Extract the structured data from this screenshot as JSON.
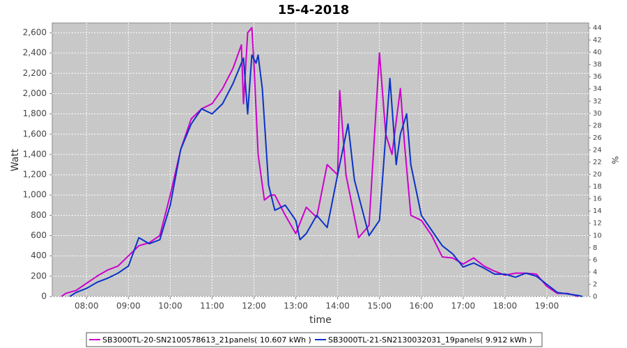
{
  "chart_data": {
    "type": "line",
    "title": "15-4-2018",
    "x_label": "time",
    "y_label": "Watt",
    "y2_label": "%",
    "xlim": [
      7.18,
      20.0
    ],
    "xticks": [
      {
        "value": 8,
        "label": "08:00"
      },
      {
        "value": 9,
        "label": "09:00"
      },
      {
        "value": 10,
        "label": "10:00"
      },
      {
        "value": 11,
        "label": "11:00"
      },
      {
        "value": 12,
        "label": "12:00"
      },
      {
        "value": 13,
        "label": "13:00"
      },
      {
        "value": 14,
        "label": "14:00"
      },
      {
        "value": 15,
        "label": "15:00"
      },
      {
        "value": 16,
        "label": "16:00"
      },
      {
        "value": 17,
        "label": "17:00"
      },
      {
        "value": 18,
        "label": "18:00"
      },
      {
        "value": 19,
        "label": "19:00"
      }
    ],
    "ylim": [
      0,
      2696
    ],
    "yticks": [
      0,
      200,
      400,
      600,
      800,
      {
        "value": 1000,
        "label": "1,000"
      },
      {
        "value": 1200,
        "label": "1,200"
      },
      {
        "value": 1400,
        "label": "1,400"
      },
      {
        "value": 1600,
        "label": "1,600"
      },
      {
        "value": 1800,
        "label": "1,800"
      },
      {
        "value": 2000,
        "label": "2,000"
      },
      {
        "value": 2200,
        "label": "2,200"
      },
      {
        "value": 2400,
        "label": "2,400"
      },
      {
        "value": 2600,
        "label": "2,600"
      }
    ],
    "y2lim": [
      0,
      44.8
    ],
    "y2ticks": [
      0,
      2,
      4,
      6,
      8,
      10,
      12,
      14,
      16,
      18,
      20,
      22,
      24,
      26,
      28,
      30,
      32,
      34,
      36,
      38,
      40,
      42,
      44
    ],
    "grid": true,
    "legend": "bottom",
    "series": [
      {
        "name": "SB3000TL-20-SN2100578613_21panels( 10.607 kWh )",
        "color": "#cc00cc",
        "x": [
          7.4,
          7.5,
          7.75,
          8.0,
          8.25,
          8.5,
          8.75,
          9.0,
          9.25,
          9.5,
          9.75,
          10.0,
          10.25,
          10.5,
          10.75,
          11.0,
          11.25,
          11.5,
          11.7,
          11.75,
          11.85,
          11.95,
          12.0,
          12.1,
          12.25,
          12.4,
          12.5,
          12.75,
          13.0,
          13.25,
          13.5,
          13.75,
          14.0,
          14.05,
          14.2,
          14.5,
          14.75,
          15.0,
          15.15,
          15.3,
          15.5,
          15.6,
          15.75,
          16.0,
          16.25,
          16.5,
          16.75,
          17.0,
          17.25,
          17.5,
          17.75,
          18.0,
          18.25,
          18.5,
          18.75,
          19.0,
          19.25,
          19.5,
          19.75
        ],
        "values": [
          0,
          30,
          60,
          130,
          200,
          260,
          300,
          400,
          500,
          530,
          600,
          1000,
          1450,
          1750,
          1850,
          1900,
          2050,
          2250,
          2480,
          1900,
          2600,
          2650,
          2300,
          1400,
          950,
          1000,
          1000,
          800,
          620,
          880,
          780,
          1300,
          1200,
          2030,
          1200,
          580,
          700,
          2400,
          1600,
          1400,
          2050,
          1500,
          800,
          750,
          600,
          390,
          380,
          320,
          380,
          300,
          250,
          210,
          230,
          230,
          220,
          100,
          30,
          30,
          0
        ]
      },
      {
        "name": "SB3000TL-21-SN2130032031_19panels( 9.912 kWh )",
        "color": "#0a32c8",
        "x": [
          7.6,
          7.75,
          8.0,
          8.25,
          8.5,
          8.75,
          9.0,
          9.25,
          9.5,
          9.75,
          10.0,
          10.25,
          10.5,
          10.75,
          11.0,
          11.25,
          11.5,
          11.75,
          11.85,
          11.95,
          12.05,
          12.1,
          12.2,
          12.35,
          12.5,
          12.75,
          13.0,
          13.1,
          13.25,
          13.5,
          13.75,
          14.0,
          14.25,
          14.4,
          14.75,
          15.0,
          15.25,
          15.4,
          15.5,
          15.65,
          15.75,
          16.0,
          16.25,
          16.5,
          16.75,
          17.0,
          17.25,
          17.5,
          17.75,
          18.0,
          18.25,
          18.5,
          18.75,
          19.0,
          19.25,
          19.5,
          19.75,
          19.85
        ],
        "values": [
          0,
          40,
          80,
          140,
          180,
          230,
          300,
          580,
          520,
          560,
          900,
          1450,
          1700,
          1850,
          1800,
          1900,
          2100,
          2350,
          1800,
          2380,
          2300,
          2380,
          2050,
          1100,
          850,
          900,
          750,
          560,
          620,
          800,
          680,
          1200,
          1700,
          1150,
          600,
          750,
          2150,
          1300,
          1600,
          1800,
          1300,
          800,
          650,
          500,
          420,
          290,
          330,
          280,
          220,
          220,
          190,
          230,
          200,
          120,
          40,
          25,
          10,
          0
        ]
      }
    ]
  }
}
